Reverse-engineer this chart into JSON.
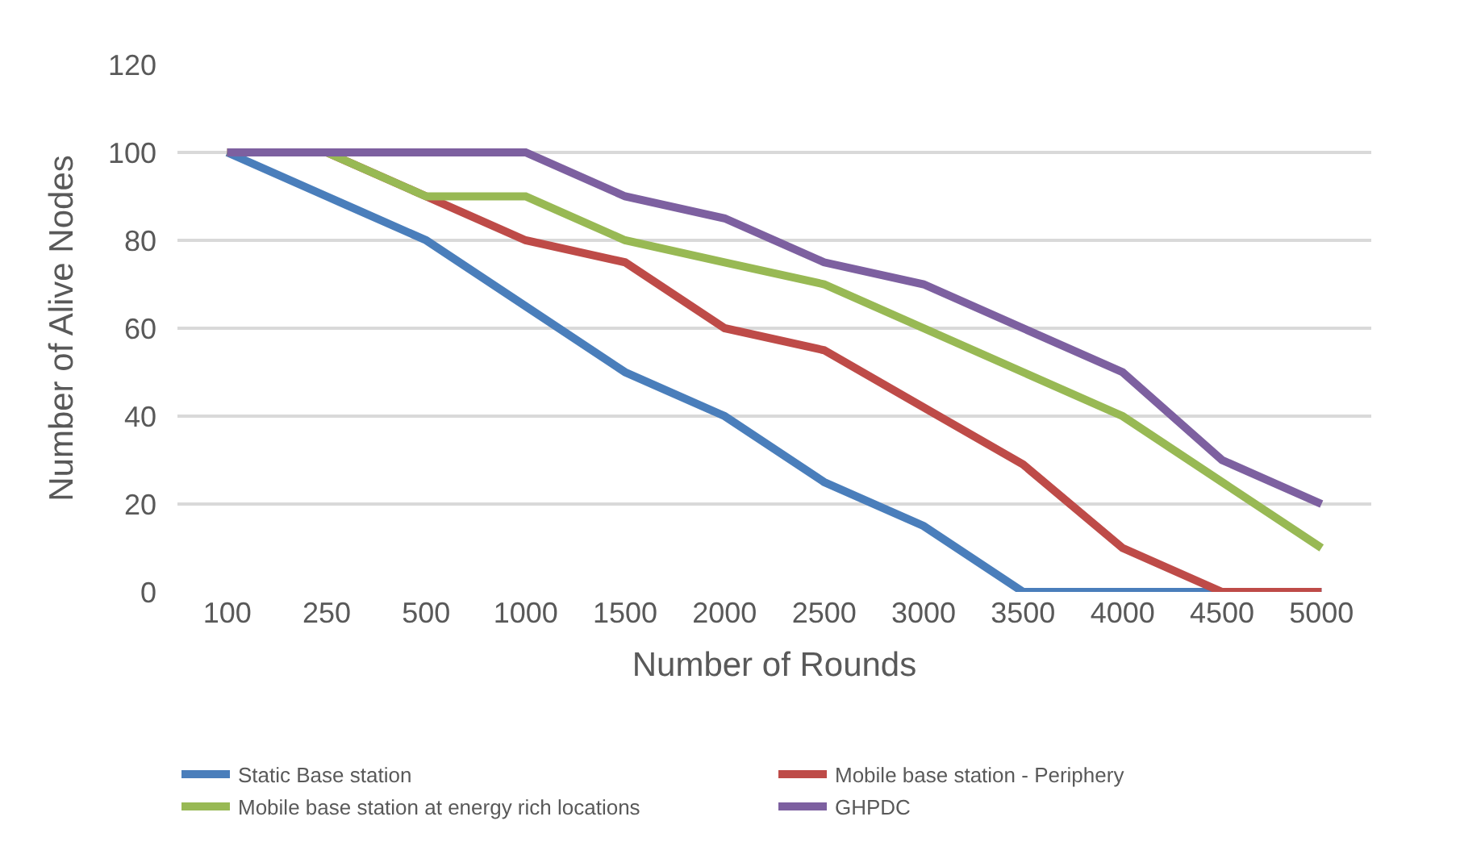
{
  "chart_data": {
    "type": "line",
    "xlabel": "Number of Rounds",
    "ylabel": "Number of Alive Nodes",
    "categories": [
      "100",
      "250",
      "500",
      "1000",
      "1500",
      "2000",
      "2500",
      "3000",
      "3500",
      "4000",
      "4500",
      "5000"
    ],
    "series": [
      {
        "name": "Static Base station",
        "color": "#4a7ebb",
        "values": [
          100,
          90,
          80,
          65,
          50,
          40,
          25,
          15,
          0,
          0,
          0,
          0
        ]
      },
      {
        "name": "Mobile base station - Periphery",
        "color": "#be4b48",
        "values": [
          100,
          100,
          90,
          80,
          75,
          60,
          55,
          42,
          29,
          10,
          0,
          0
        ]
      },
      {
        "name": "Mobile base station at energy rich locations",
        "color": "#98b954",
        "values": [
          100,
          100,
          90,
          90,
          80,
          75,
          70,
          60,
          50,
          40,
          25,
          10
        ]
      },
      {
        "name": "GHPDC",
        "color": "#7d60a0",
        "values": [
          100,
          100,
          100,
          100,
          90,
          85,
          75,
          70,
          60,
          50,
          30,
          20
        ]
      }
    ],
    "ylim": [
      0,
      120
    ],
    "yticks": [
      0,
      20,
      40,
      60,
      80,
      100,
      120
    ],
    "grid": "y",
    "legend": "bottom",
    "marker": "none",
    "line_style": "solid"
  }
}
